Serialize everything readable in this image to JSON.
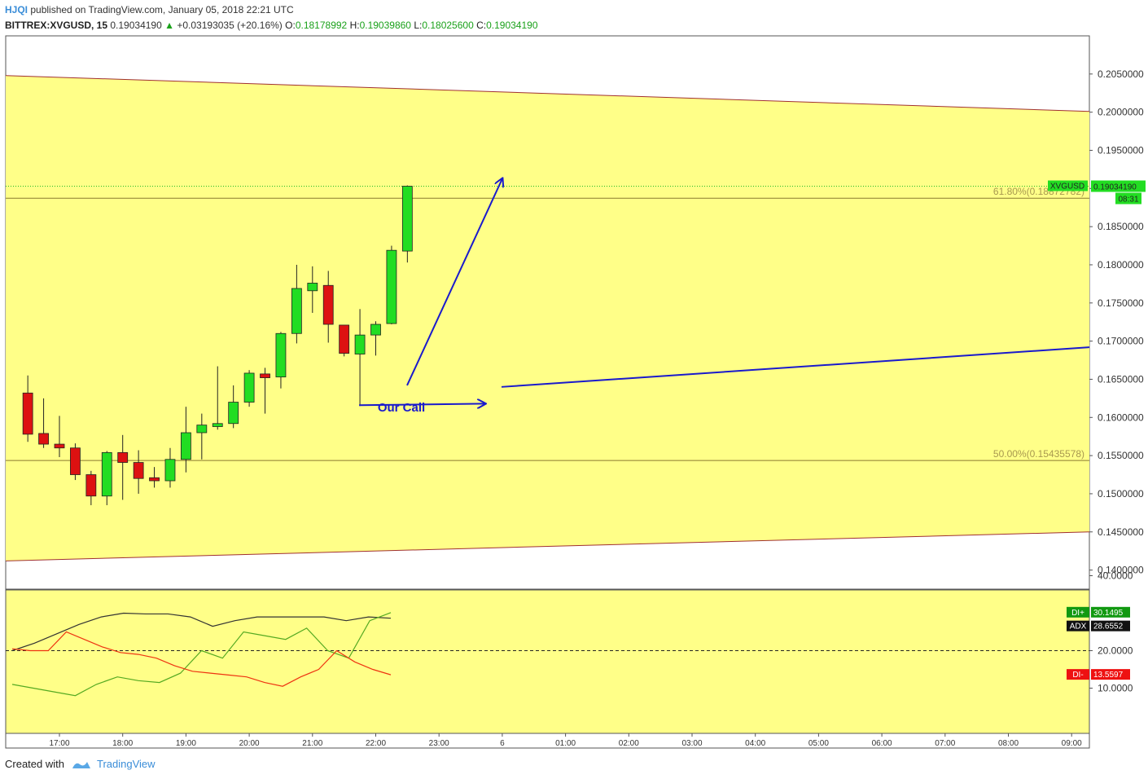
{
  "header": {
    "user": "HJQI",
    "published": "published on TradingView.com, January 05, 2018 22:21 UTC",
    "symbol": "BITTREX:XVGUSD, 15",
    "last": "0.19034190",
    "change": "+0.03193035 (+20.16%)",
    "o_label": "O:",
    "o": "0.18178992",
    "h_label": "H:",
    "h": "0.19039860",
    "l_label": "L:",
    "l": "0.18025600",
    "c_label": "C:",
    "c": "0.19034190"
  },
  "footer": {
    "created": "Created with",
    "brand": "TradingView"
  },
  "colors": {
    "up": "#22dd22",
    "down": "#dd1111",
    "channel": "#ffff88",
    "arrow": "#1a1acc",
    "adx": "#333333",
    "di_plus": "#55aa22",
    "di_minus": "#ee3311"
  },
  "chart_data": [
    {
      "type": "candlestick",
      "ylim": [
        0.1375,
        0.21
      ],
      "y_ticks": [
        0.14,
        0.145,
        0.15,
        0.155,
        0.16,
        0.165,
        0.17,
        0.175,
        0.18,
        0.185,
        0.19,
        0.195,
        0.2,
        0.205
      ],
      "y_tick_labels": [
        "0.1400000",
        "0.1450000",
        "0.1500000",
        "0.1550000",
        "0.1600000",
        "0.1650000",
        "0.1700000",
        "0.1750000",
        "0.1800000",
        "0.1850000",
        "0.1900000",
        "0.1950000",
        "0.2000000",
        "0.2050000"
      ],
      "x_ticks": [
        "17:00",
        "18:00",
        "19:00",
        "20:00",
        "21:00",
        "22:00",
        "23:00",
        "6",
        "01:00",
        "02:00",
        "03:00",
        "04:00",
        "05:00",
        "06:00",
        "07:00",
        "08:00",
        "09:00"
      ],
      "candles": [
        {
          "t": "16:30",
          "o": 0.1632,
          "h": 0.1655,
          "l": 0.1568,
          "c": 0.1578
        },
        {
          "t": "16:45",
          "o": 0.1579,
          "h": 0.1625,
          "l": 0.156,
          "c": 0.1565
        },
        {
          "t": "17:00",
          "o": 0.1565,
          "h": 0.1602,
          "l": 0.1548,
          "c": 0.156
        },
        {
          "t": "17:15",
          "o": 0.156,
          "h": 0.1566,
          "l": 0.1518,
          "c": 0.1525
        },
        {
          "t": "17:30",
          "o": 0.1525,
          "h": 0.153,
          "l": 0.1485,
          "c": 0.1497
        },
        {
          "t": "17:45",
          "o": 0.1497,
          "h": 0.1556,
          "l": 0.1485,
          "c": 0.1554
        },
        {
          "t": "18:00",
          "o": 0.1554,
          "h": 0.1577,
          "l": 0.1492,
          "c": 0.1541
        },
        {
          "t": "18:15",
          "o": 0.1541,
          "h": 0.1557,
          "l": 0.15,
          "c": 0.152
        },
        {
          "t": "18:30",
          "o": 0.1521,
          "h": 0.1535,
          "l": 0.1508,
          "c": 0.1517
        },
        {
          "t": "18:45",
          "o": 0.1517,
          "h": 0.156,
          "l": 0.1508,
          "c": 0.1545
        },
        {
          "t": "19:00",
          "o": 0.1545,
          "h": 0.1614,
          "l": 0.1528,
          "c": 0.158
        },
        {
          "t": "19:15",
          "o": 0.158,
          "h": 0.1605,
          "l": 0.1545,
          "c": 0.159
        },
        {
          "t": "19:30",
          "o": 0.1588,
          "h": 0.1667,
          "l": 0.1584,
          "c": 0.1592
        },
        {
          "t": "19:45",
          "o": 0.1592,
          "h": 0.1642,
          "l": 0.1586,
          "c": 0.162
        },
        {
          "t": "20:00",
          "o": 0.162,
          "h": 0.1662,
          "l": 0.1614,
          "c": 0.1658
        },
        {
          "t": "20:15",
          "o": 0.1657,
          "h": 0.1665,
          "l": 0.1605,
          "c": 0.1652
        },
        {
          "t": "20:30",
          "o": 0.1653,
          "h": 0.1712,
          "l": 0.1638,
          "c": 0.171
        },
        {
          "t": "20:45",
          "o": 0.171,
          "h": 0.18,
          "l": 0.1697,
          "c": 0.1769
        },
        {
          "t": "21:00",
          "o": 0.1766,
          "h": 0.1798,
          "l": 0.1737,
          "c": 0.1776
        },
        {
          "t": "21:15",
          "o": 0.1773,
          "h": 0.1792,
          "l": 0.1698,
          "c": 0.1722
        },
        {
          "t": "21:30",
          "o": 0.1721,
          "h": 0.1721,
          "l": 0.168,
          "c": 0.1684
        },
        {
          "t": "21:45",
          "o": 0.1683,
          "h": 0.1742,
          "l": 0.1615,
          "c": 0.1708
        },
        {
          "t": "22:00",
          "o": 0.1708,
          "h": 0.1726,
          "l": 0.1681,
          "c": 0.1722
        },
        {
          "t": "22:15",
          "o": 0.1723,
          "h": 0.1825,
          "l": 0.1722,
          "c": 0.1819
        },
        {
          "t": "22:30",
          "o": 0.1818,
          "h": 0.1904,
          "l": 0.1803,
          "c": 0.1903
        }
      ],
      "current_price": {
        "symbol": "XVGUSD",
        "value": "0.19034190",
        "countdown": "08:31"
      },
      "fib_levels": [
        {
          "label": "61.80%(0.18872782)",
          "value": 0.18872782
        },
        {
          "label": "50.00%(0.15435578)",
          "value": 0.15435578
        }
      ],
      "channel": {
        "upper": [
          0.2048,
          0.2001
        ],
        "lower": [
          0.1412,
          0.145
        ]
      },
      "annotation": "Our Call"
    },
    {
      "type": "line",
      "indicator": "DMI",
      "ylim": [
        0,
        40
      ],
      "y_ticks": [
        10,
        20,
        40
      ],
      "y_tick_labels": [
        "10.0000",
        "20.0000",
        "40.0000"
      ],
      "reference_line": 20,
      "series": [
        {
          "name": "ADX",
          "values": [
            20,
            22,
            24.5,
            27,
            29,
            30,
            29.8,
            29.8,
            29,
            26.5,
            28,
            29,
            29,
            29,
            29,
            28,
            29,
            28.66
          ],
          "last_label": "28.6552"
        },
        {
          "name": "DI+",
          "values": [
            11,
            10,
            9,
            8,
            11,
            13,
            12,
            11.5,
            14,
            20,
            18,
            25,
            24,
            23,
            26,
            20,
            18,
            28,
            30.15
          ],
          "last_label": "30.1495"
        },
        {
          "name": "DI-",
          "values": [
            20.5,
            20,
            20,
            25,
            23,
            21,
            19.5,
            19,
            18,
            16,
            14.5,
            14,
            13.5,
            13,
            11.5,
            10.5,
            13,
            15,
            20,
            17,
            15,
            13.56
          ],
          "last_label": "13.5597"
        }
      ]
    }
  ]
}
